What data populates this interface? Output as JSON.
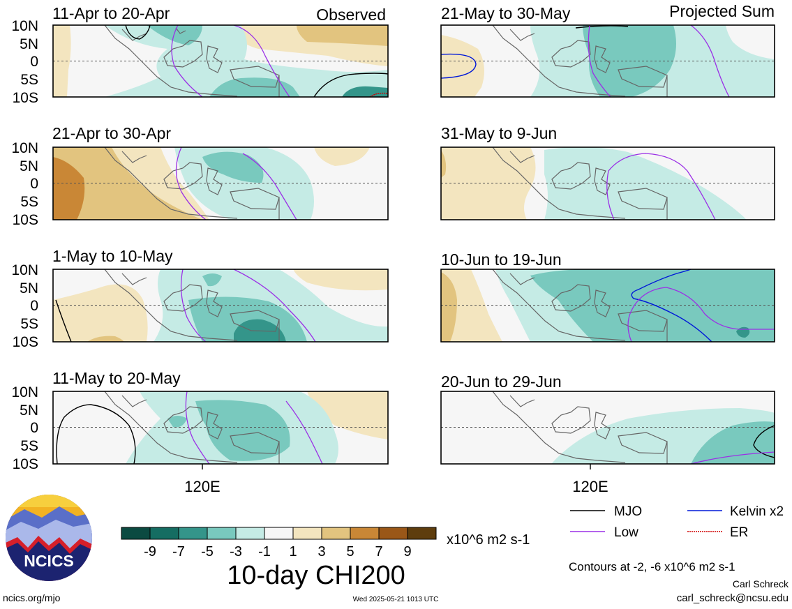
{
  "headers": {
    "observed": "Observed",
    "projected": "Projected Sum"
  },
  "panels": [
    {
      "title": "11-Apr to 20-Apr"
    },
    {
      "title": "21-Apr to 30-Apr"
    },
    {
      "title": "1-May to 10-May"
    },
    {
      "title": "11-May to 20-May"
    },
    {
      "title": "21-May to 30-May"
    },
    {
      "title": "31-May to 9-Jun"
    },
    {
      "title": "10-Jun to 19-Jun"
    },
    {
      "title": "20-Jun to 29-Jun"
    }
  ],
  "lat_labels": [
    "10N",
    "5N",
    "0",
    "5S",
    "10S"
  ],
  "lon_label": "120E",
  "colorbar": {
    "colors": [
      "#0b4a41",
      "#156d62",
      "#34958a",
      "#79c9be",
      "#c5ebe5",
      "#f6f6f6",
      "#f3e5bf",
      "#e2c47f",
      "#c98736",
      "#9a5718",
      "#5e3d0d"
    ],
    "ticks": [
      "-9",
      "-7",
      "-5",
      "-3",
      "-1",
      "1",
      "3",
      "5",
      "7",
      "9"
    ],
    "units": "x10^6 m2 s-1",
    "title": "10-day CHI200"
  },
  "legend": [
    {
      "label": "MJO",
      "color": "#000000"
    },
    {
      "label": "Kelvin x2",
      "color": "#0018d8"
    },
    {
      "label": "Low",
      "color": "#9b30e6"
    },
    {
      "label": "ER",
      "color": "#d00000"
    }
  ],
  "contour_note": "Contours at -2, -6 x10^6 m2 s-1",
  "author": "Carl Schreck",
  "email": "carl_schreck@ncsu.edu",
  "url": "ncics.org/mjo",
  "timestamp": "Wed 2025-05-21 1013 UTC",
  "logo_text": "NCICS"
}
